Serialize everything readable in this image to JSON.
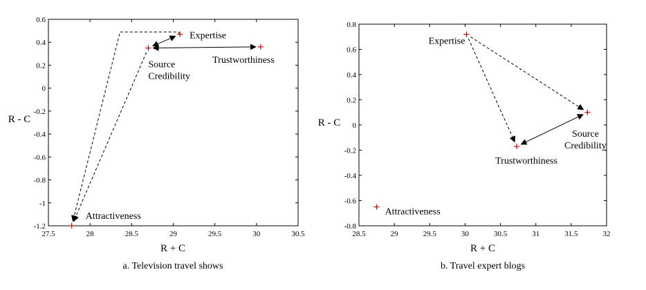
{
  "chart_data": [
    {
      "type": "scatter",
      "caption": "a. Television travel shows",
      "xlabel": "R + C",
      "ylabel": "R - C",
      "xlim": [
        27.5,
        30.5
      ],
      "ylim": [
        -1.2,
        0.6
      ],
      "xticks": [
        27.5,
        28,
        28.5,
        29,
        29.5,
        30,
        30.5
      ],
      "xtick_labels": [
        "27.5",
        "28",
        "28.5",
        "29",
        "29.5",
        "30",
        "30.5"
      ],
      "yticks": [
        0.6,
        0.4,
        0.2,
        0,
        -0.2,
        -0.4,
        -0.6,
        -0.8,
        -1,
        -1.2
      ],
      "ytick_labels": [
        "0.6",
        "0.4",
        "0.2",
        "0",
        "-0.2",
        "-0.4",
        "-0.6",
        "-0.8",
        "-1",
        "-1.2"
      ],
      "marker_color": "#cc0000",
      "points": [
        {
          "label_lines": [
            "Expertise"
          ],
          "x": 29.08,
          "y": 0.47
        },
        {
          "label_lines": [
            "Source",
            "Credibility"
          ],
          "x": 28.7,
          "y": 0.35
        },
        {
          "label_lines": [
            "Trustworthiness"
          ],
          "x": 30.05,
          "y": 0.36
        },
        {
          "label_lines": [
            "Attractiveness"
          ],
          "x": 27.78,
          "y": -1.2
        }
      ],
      "relations": [
        {
          "from": "Expertise",
          "to": "Source Credibility",
          "style": "solid",
          "heads": "both"
        },
        {
          "from": "Trustworthiness",
          "to": "Source Credibility",
          "style": "solid",
          "heads": "both"
        },
        {
          "from": "Expertise",
          "to": "Attractiveness",
          "style": "dashed",
          "heads": "end",
          "via": [
            [
              29.06,
              0.49
            ],
            [
              28.36,
              0.49
            ]
          ]
        },
        {
          "from": "Source Credibility",
          "to": "Attractiveness",
          "style": "dashed",
          "heads": "end"
        }
      ]
    },
    {
      "type": "scatter",
      "caption": "b. Travel expert blogs",
      "xlabel": "R + C",
      "ylabel": "R - C",
      "xlim": [
        28.5,
        32
      ],
      "ylim": [
        -0.8,
        0.8
      ],
      "xticks": [
        28.5,
        29,
        29.5,
        30,
        30.5,
        31,
        31.5,
        32
      ],
      "xtick_labels": [
        "28.5",
        "29",
        "29.5",
        "30",
        "30.5",
        "31",
        "31.5",
        "32"
      ],
      "yticks": [
        0.8,
        0.6,
        0.4,
        0.2,
        0,
        -0.2,
        -0.4,
        -0.6,
        -0.8
      ],
      "ytick_labels": [
        "0.8",
        "0.6",
        "0.4",
        "0.2",
        "0",
        "-0.2",
        "-0.4",
        "-0.6",
        "-0.8"
      ],
      "marker_color": "#cc0000",
      "points": [
        {
          "label_lines": [
            "Expertise"
          ],
          "x": 30.02,
          "y": 0.72
        },
        {
          "label_lines": [
            "Source",
            "Credibility"
          ],
          "x": 31.73,
          "y": 0.1
        },
        {
          "label_lines": [
            "Trustworthiness"
          ],
          "x": 30.73,
          "y": -0.17
        },
        {
          "label_lines": [
            "Attractiveness"
          ],
          "x": 28.75,
          "y": -0.65
        }
      ],
      "relations": [
        {
          "from": "Expertise",
          "to": "Trustworthiness",
          "style": "dashed",
          "heads": "end"
        },
        {
          "from": "Expertise",
          "to": "Source Credibility",
          "style": "dashed",
          "heads": "end"
        },
        {
          "from": "Source Credibility",
          "to": "Trustworthiness",
          "style": "solid",
          "heads": "both"
        }
      ]
    }
  ]
}
